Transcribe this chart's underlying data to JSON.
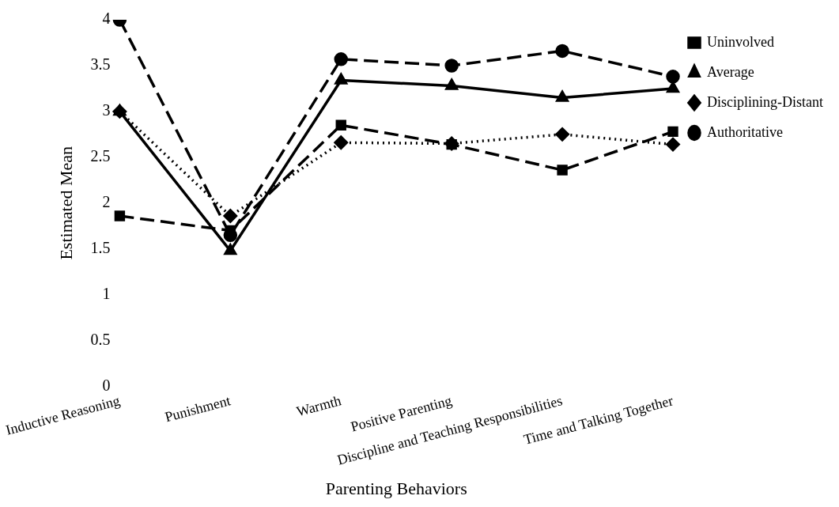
{
  "chart_data": {
    "type": "line",
    "xlabel": "Parenting Behaviors",
    "ylabel": "Estimated Mean",
    "categories": [
      "Inductive Reasoning",
      "Punishment",
      "Warmth",
      "Positive Parenting",
      "Discipline and Teaching Responsibilities",
      "Time and Talking Together"
    ],
    "ylim": [
      0,
      4
    ],
    "yticks": [
      0,
      0.5,
      1,
      1.5,
      2,
      2.5,
      3,
      3.5,
      4
    ],
    "grid": false,
    "legend": "top right",
    "series": [
      {
        "name": "Uninvolved",
        "color": "#000000",
        "marker": "square",
        "line_style": "dashed",
        "values": [
          1.86,
          1.7,
          2.85,
          2.64,
          2.36,
          2.78
        ]
      },
      {
        "name": "Average",
        "color": "#000000",
        "marker": "triangle",
        "line_style": "solid",
        "values": [
          3.0,
          1.48,
          3.34,
          3.28,
          3.15,
          3.25
        ]
      },
      {
        "name": "Disciplining-Distant",
        "color": "#000000",
        "marker": "diamond",
        "line_style": "dotted",
        "values": [
          3.0,
          1.86,
          2.66,
          2.65,
          2.75,
          2.64
        ]
      },
      {
        "name": "Authoritative",
        "color": "#000000",
        "marker": "circle",
        "line_style": "dashed",
        "values": [
          4.0,
          1.65,
          3.57,
          3.5,
          3.66,
          3.38
        ]
      }
    ]
  }
}
